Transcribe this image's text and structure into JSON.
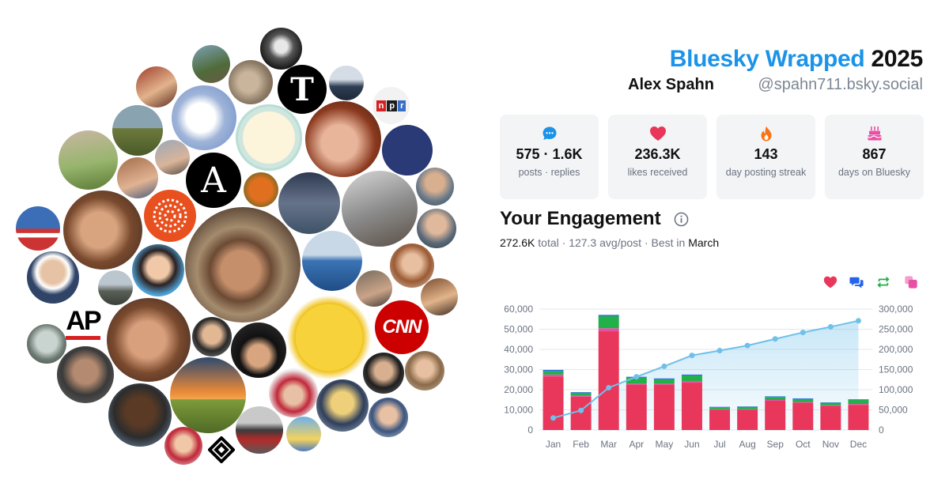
{
  "header": {
    "brand": "Bluesky Wrapped",
    "year": "2025",
    "display_name": "Alex Spahn",
    "handle": "@spahn711.bsky.social"
  },
  "stats": [
    {
      "icon": "speech-bubble-icon",
      "value": "575 · 1.6K",
      "label": "posts · replies"
    },
    {
      "icon": "heart-icon",
      "value": "236.3K",
      "label": "likes received"
    },
    {
      "icon": "flame-icon",
      "value": "143",
      "label": "day posting streak"
    },
    {
      "icon": "cake-icon",
      "value": "867",
      "label": "days on Bluesky"
    }
  ],
  "engagement": {
    "title": "Your Engagement",
    "total_value": "272.6K",
    "total_label": "total",
    "avg_value": "127.3",
    "avg_label": "avg/post",
    "best_label": "Best in",
    "best_month": "March"
  },
  "avatars": {
    "labels": {
      "ap": "AP",
      "cnn": "CNN",
      "npr": "npr",
      "atlantic": "A",
      "nyt": "T"
    }
  },
  "colors": {
    "brand": "#1a93e8",
    "likes": "#e8375a",
    "replies": "#2563eb",
    "reposts": "#22b04b",
    "quotes": "#e94fa4",
    "cumulative": "#6fc0ea"
  },
  "chart_data": {
    "type": "bar",
    "categories": [
      "Jan",
      "Feb",
      "Mar",
      "Apr",
      "May",
      "Jun",
      "Jul",
      "Aug",
      "Sep",
      "Oct",
      "Nov",
      "Dec"
    ],
    "series": [
      {
        "values": [
          26500,
          16500,
          49000,
          22500,
          22500,
          23500,
          10000,
          10000,
          14500,
          13500,
          12000,
          12500
        ]
      },
      {
        "values": [
          1000,
          500,
          1500,
          500,
          500,
          800,
          300,
          300,
          400,
          400,
          300,
          400
        ]
      },
      {
        "values": [
          1800,
          1500,
          6000,
          3000,
          2200,
          2800,
          1000,
          1200,
          1500,
          1500,
          1200,
          2000
        ]
      },
      {
        "values": [
          500,
          300,
          600,
          400,
          400,
          400,
          200,
          200,
          300,
          300,
          200,
          300
        ]
      }
    ],
    "cumulative": [
      30000,
      48500,
      105000,
      132000,
      158000,
      185000,
      197000,
      209500,
      226000,
      242000,
      256000,
      271000
    ],
    "left_ticks": [
      "0",
      "10,000",
      "20,000",
      "30,000",
      "40,000",
      "50,000",
      "60,000"
    ],
    "right_ticks": [
      "0",
      "50,000",
      "100,000",
      "150,000",
      "200,000",
      "250,000",
      "300,000"
    ],
    "ylim_left": [
      0,
      60000
    ],
    "ylim_right": [
      0,
      300000
    ],
    "grid": true
  }
}
